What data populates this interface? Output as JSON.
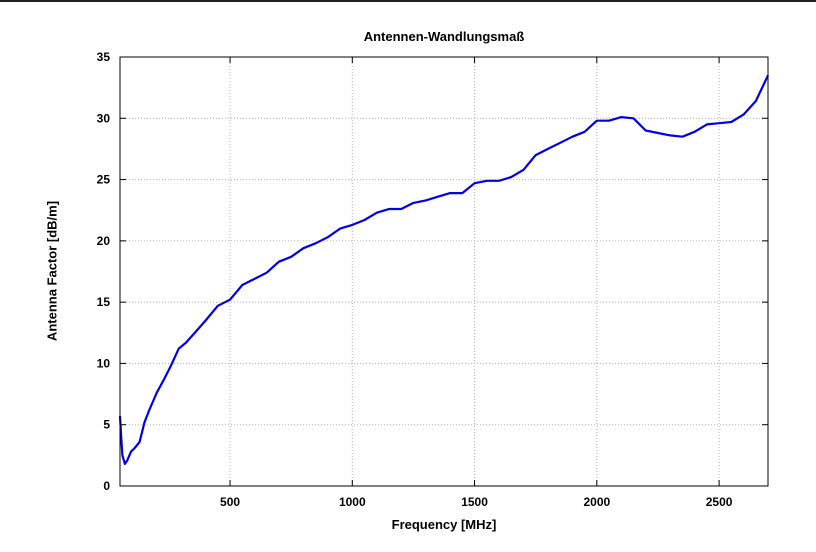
{
  "chart_data": {
    "type": "line",
    "title": "Antennen-Wandlungsmaß",
    "xlabel": "Frequency [MHz]",
    "ylabel": "Antenna Factor [dB/m]",
    "xlim": [
      50,
      2700
    ],
    "ylim": [
      0,
      35
    ],
    "xticks": [
      500,
      1000,
      1500,
      2000,
      2500
    ],
    "yticks": [
      0,
      5,
      10,
      15,
      20,
      25,
      30,
      35
    ],
    "grid": true,
    "line_color": "#0000e6",
    "series": [
      {
        "x": [
          50,
          55,
          60,
          70,
          80,
          95,
          110,
          130,
          150,
          170,
          200,
          230,
          260,
          290,
          320,
          360,
          400,
          450,
          500,
          550,
          600,
          650,
          700,
          750,
          800,
          850,
          900,
          950,
          1000,
          1050,
          1100,
          1150,
          1200,
          1250,
          1300,
          1350,
          1400,
          1450,
          1500,
          1550,
          1600,
          1650,
          1700,
          1750,
          1800,
          1850,
          1900,
          1950,
          2000,
          2050,
          2100,
          2150,
          2200,
          2250,
          2300,
          2350,
          2400,
          2450,
          2500,
          2550,
          2600,
          2650,
          2700
        ],
        "values": [
          5.7,
          4.0,
          2.5,
          1.8,
          2.1,
          2.8,
          3.1,
          3.6,
          5.2,
          6.2,
          7.6,
          8.7,
          9.9,
          11.2,
          11.7,
          12.6,
          13.5,
          14.7,
          15.2,
          16.4,
          16.9,
          17.4,
          18.3,
          18.7,
          19.4,
          19.8,
          20.3,
          21.0,
          21.3,
          21.7,
          22.3,
          22.6,
          22.6,
          23.1,
          23.3,
          23.6,
          23.9,
          23.9,
          24.7,
          24.9,
          24.9,
          25.2,
          25.8,
          27.0,
          27.5,
          28.0,
          28.5,
          28.9,
          29.8,
          29.8,
          30.1,
          30.0,
          29.0,
          28.8,
          28.6,
          28.5,
          28.9,
          29.5,
          29.6,
          29.7,
          30.3,
          31.4,
          33.5
        ]
      }
    ]
  }
}
